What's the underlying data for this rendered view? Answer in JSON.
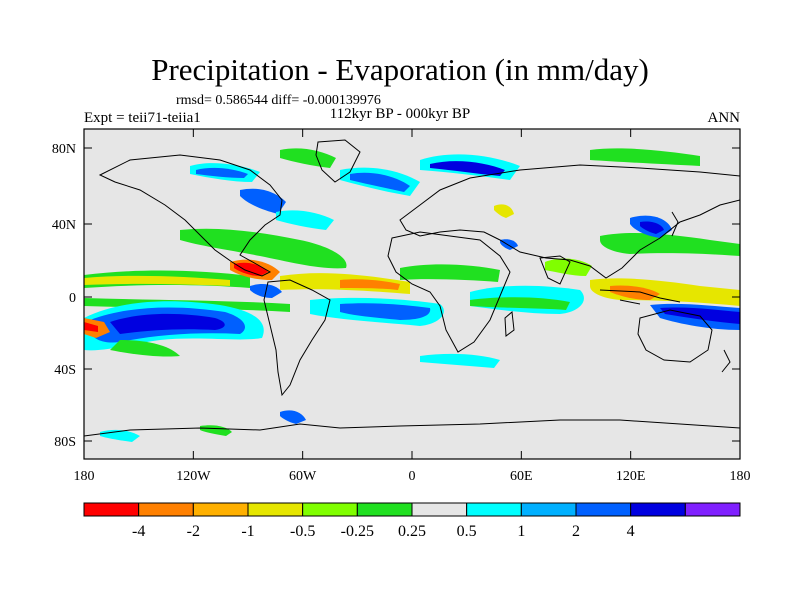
{
  "title": "Precipitation - Evaporation (in mm/day)",
  "stats": "rmsd= 0.586544 diff= -0.000139976",
  "experiment": "Expt = teii71-teiia1",
  "period": "112kyr BP - 000kyr BP",
  "season": "ANN",
  "lat_ticks": [
    "80N",
    "40N",
    "0",
    "40S",
    "80S"
  ],
  "lon_ticks": [
    "180",
    "120W",
    "60W",
    "0",
    "60E",
    "120E",
    "180"
  ],
  "colorbar": {
    "colors": [
      "#ff0000",
      "#ff8000",
      "#ffb000",
      "#e6e600",
      "#80ff00",
      "#20e020",
      "#e6e6e6",
      "#00ffff",
      "#00b0ff",
      "#0060ff",
      "#0000e0",
      "#8020ff"
    ],
    "labels": [
      "-4",
      "-2",
      "-1",
      "-0.5",
      "-0.25",
      "0.25",
      "0.5",
      "1",
      "2",
      "4"
    ]
  },
  "colors": {
    "land_outline": "#000000",
    "background_field": "#e6e6e6"
  }
}
